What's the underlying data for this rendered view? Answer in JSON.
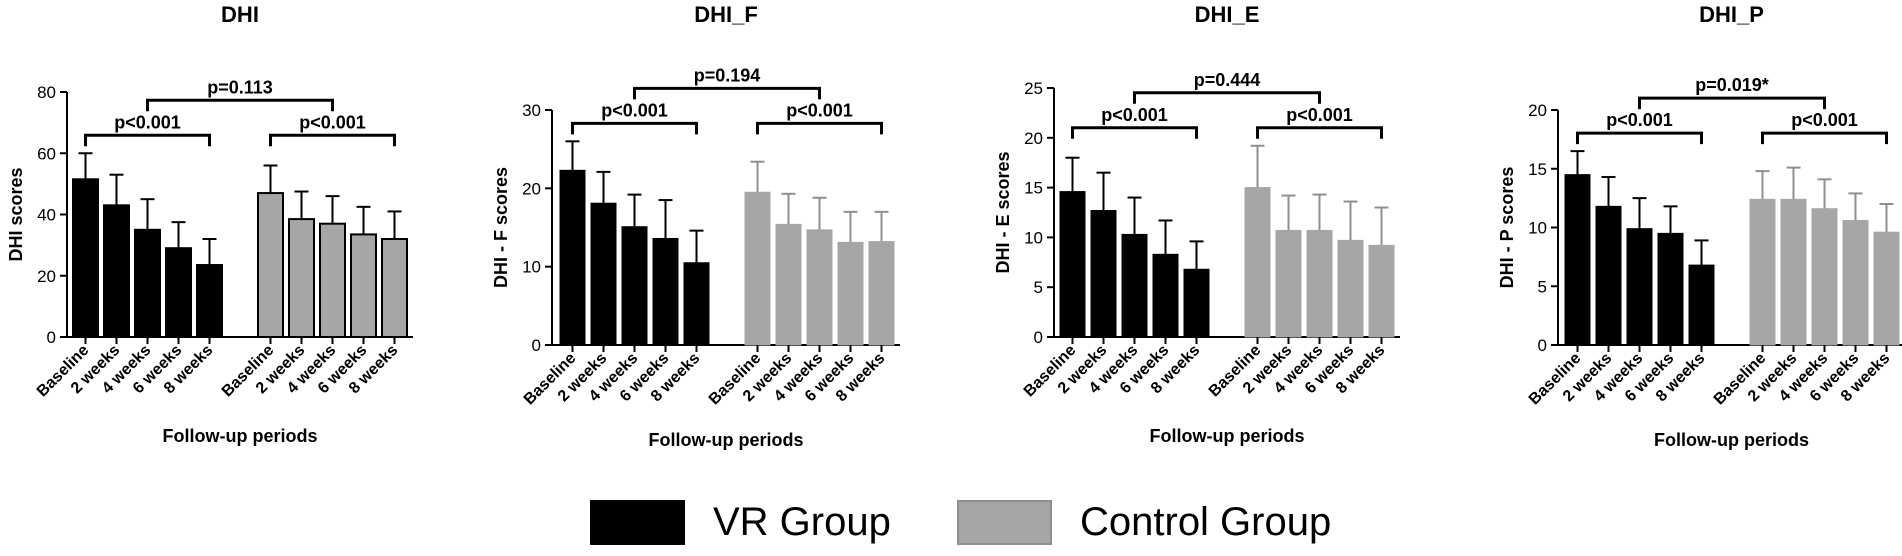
{
  "colors": {
    "vr": "#000000",
    "control": "#a6a6a6",
    "control_dark": "#8f8f8f"
  },
  "legend": [
    {
      "label": "VR Group",
      "color": "#000000"
    },
    {
      "label": "Control Group",
      "color": "#a6a6a6"
    }
  ],
  "chart_data": [
    {
      "type": "bar",
      "title": "DHI",
      "ylabel": "DHI scores",
      "xlabel": "Follow-up periods",
      "ylim": [
        0,
        80
      ],
      "yticks": [
        0,
        20,
        40,
        60,
        80
      ],
      "categories": [
        "Baseline",
        "2 weeks",
        "4 weeks",
        "6 weeks",
        "8 weeks"
      ],
      "bar_outline": true,
      "series": [
        {
          "name": "VR Group",
          "values": [
            51.5,
            43,
            35,
            29,
            23.5
          ],
          "errors": [
            8.5,
            10,
            10,
            8.5,
            8.5
          ]
        },
        {
          "name": "Control Group",
          "values": [
            47,
            38.5,
            37,
            33.5,
            32
          ],
          "errors": [
            9,
            9,
            9,
            9,
            9
          ]
        }
      ],
      "annotations": [
        {
          "text": "p<0.001",
          "series": 0
        },
        {
          "text": "p<0.001",
          "series": 1
        },
        {
          "text": "p=0.113",
          "between": "groups"
        }
      ]
    },
    {
      "type": "bar",
      "title": "DHI_F",
      "ylabel": "DHI - F scores",
      "xlabel": "Follow-up periods",
      "ylim": [
        0,
        30
      ],
      "yticks": [
        0,
        10,
        20,
        30
      ],
      "categories": [
        "Baseline",
        "2 weeks",
        "4 weeks",
        "6 weeks",
        "8 weeks"
      ],
      "bar_outline": false,
      "series": [
        {
          "name": "VR Group",
          "values": [
            22.3,
            18.1,
            15.1,
            13.6,
            10.5
          ],
          "errors": [
            3.7,
            4.0,
            4.1,
            4.9,
            4.1
          ]
        },
        {
          "name": "Control Group",
          "values": [
            19.5,
            15.4,
            14.7,
            13.1,
            13.2
          ],
          "errors": [
            3.9,
            3.9,
            4.1,
            3.9,
            3.8
          ]
        }
      ],
      "annotations": [
        {
          "text": "p<0.001",
          "series": 0
        },
        {
          "text": "p<0.001",
          "series": 1
        },
        {
          "text": "p=0.194",
          "between": "groups"
        }
      ]
    },
    {
      "type": "bar",
      "title": "DHI_E",
      "ylabel": "DHI - E scores",
      "xlabel": "Follow-up periods",
      "ylim": [
        0,
        25
      ],
      "yticks": [
        0,
        5,
        10,
        15,
        20,
        25
      ],
      "categories": [
        "Baseline",
        "2 weeks",
        "4 weeks",
        "6 weeks",
        "8 weeks"
      ],
      "bar_outline": false,
      "series": [
        {
          "name": "VR Group",
          "values": [
            14.6,
            12.7,
            10.3,
            8.3,
            6.8
          ],
          "errors": [
            3.4,
            3.8,
            3.7,
            3.4,
            2.8
          ]
        },
        {
          "name": "Control Group",
          "values": [
            15.0,
            10.7,
            10.7,
            9.7,
            9.2
          ],
          "errors": [
            4.2,
            3.5,
            3.6,
            3.9,
            3.8
          ]
        }
      ],
      "annotations": [
        {
          "text": "p<0.001",
          "series": 0
        },
        {
          "text": "p<0.001",
          "series": 1
        },
        {
          "text": "p=0.444",
          "between": "groups"
        }
      ]
    },
    {
      "type": "bar",
      "title": "DHI_P",
      "ylabel": "DHI - P scores",
      "xlabel": "Follow-up periods",
      "ylim": [
        0,
        20
      ],
      "yticks": [
        0,
        5,
        10,
        15,
        20
      ],
      "categories": [
        "Baseline",
        "2 weeks",
        "4 weeks",
        "6 weeks",
        "8 weeks"
      ],
      "bar_outline": false,
      "series": [
        {
          "name": "VR Group",
          "values": [
            14.5,
            11.8,
            9.9,
            9.5,
            6.8
          ],
          "errors": [
            2.0,
            2.5,
            2.6,
            2.3,
            2.1
          ]
        },
        {
          "name": "Control Group",
          "values": [
            12.4,
            12.4,
            11.6,
            10.6,
            9.6
          ],
          "errors": [
            2.4,
            2.7,
            2.5,
            2.3,
            2.4
          ]
        }
      ],
      "annotations": [
        {
          "text": "p<0.001",
          "series": 0
        },
        {
          "text": "p<0.001",
          "series": 1
        },
        {
          "text": "p=0.019*",
          "between": "groups"
        }
      ]
    }
  ]
}
